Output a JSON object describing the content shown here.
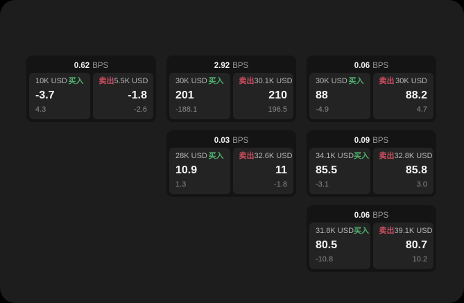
{
  "colors": {
    "page_bg": "#1d1d1d",
    "card_bg": "#141414",
    "panel_bg": "#232323",
    "buy": "#4fae6e",
    "sell": "#cd4f60"
  },
  "labels": {
    "bps_unit": "BPS",
    "buy": "买入",
    "sell": "卖出"
  },
  "cards": [
    {
      "col": 1,
      "row": 1,
      "bps": "0.62",
      "buy": {
        "notional": "10K USD",
        "price": "-3.7",
        "delta": "4.3"
      },
      "sell": {
        "notional": "5.5K USD",
        "price": "-1.8",
        "delta": "-2.6"
      }
    },
    {
      "col": 2,
      "row": 1,
      "bps": "2.92",
      "buy": {
        "notional": "30K USD",
        "price": "201",
        "delta": "-188.1"
      },
      "sell": {
        "notional": "30.1K USD",
        "price": "210",
        "delta": "196.5"
      }
    },
    {
      "col": 3,
      "row": 1,
      "bps": "0.06",
      "buy": {
        "notional": "30K USD",
        "price": "88",
        "delta": "-4.9"
      },
      "sell": {
        "notional": "30K USD",
        "price": "88.2",
        "delta": "4.7"
      }
    },
    {
      "col": 2,
      "row": 2,
      "bps": "0.03",
      "buy": {
        "notional": "28K USD",
        "price": "10.9",
        "delta": "1.3"
      },
      "sell": {
        "notional": "32.6K USD",
        "price": "11",
        "delta": "-1.8"
      }
    },
    {
      "col": 3,
      "row": 2,
      "bps": "0.09",
      "buy": {
        "notional": "34.1K USD",
        "price": "85.5",
        "delta": "-3.1"
      },
      "sell": {
        "notional": "32.8K USD",
        "price": "85.8",
        "delta": "3.0"
      }
    },
    {
      "col": 3,
      "row": 3,
      "bps": "0.06",
      "buy": {
        "notional": "31.8K USD",
        "price": "80.5",
        "delta": "-10.8"
      },
      "sell": {
        "notional": "39.1K USD",
        "price": "80.7",
        "delta": "10.2"
      }
    }
  ]
}
